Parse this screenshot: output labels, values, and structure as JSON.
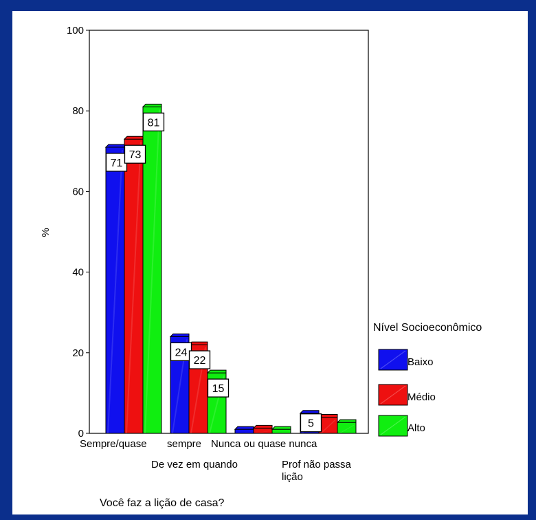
{
  "chart_data": {
    "type": "bar",
    "categories": [
      "Sempre/quase sempre",
      "De vez em quando",
      "Nunca ou quase nunca",
      "Prof não passa lição"
    ],
    "category_labels": [
      [
        "Sempre/quase",
        "sempre"
      ],
      [
        "De vez em quando"
      ],
      [
        "Nunca ou quase nunca"
      ],
      [
        "Prof não passa",
        "lição"
      ]
    ],
    "series": [
      {
        "name": "Baixo",
        "color": "#1010ee",
        "values": [
          71,
          24,
          1,
          5
        ],
        "labels": [
          "71",
          "24",
          "",
          "5"
        ]
      },
      {
        "name": "Médio",
        "color": "#ee1010",
        "values": [
          73,
          22,
          1.3,
          4
        ],
        "labels": [
          "73",
          "22",
          "",
          ""
        ]
      },
      {
        "name": "Alto",
        "color": "#10ee10",
        "values": [
          81,
          15,
          1,
          2.7
        ],
        "labels": [
          "81",
          "15",
          "",
          ""
        ]
      }
    ],
    "xlabel": "Você faz a lição de casa?",
    "ylabel": "%",
    "ylim": [
      0,
      100
    ],
    "yticks": [
      "0",
      "20",
      "40",
      "60",
      "80",
      "100"
    ],
    "legend_title": "Nível Socioeconômico",
    "legend_position": "right",
    "grid": false
  }
}
